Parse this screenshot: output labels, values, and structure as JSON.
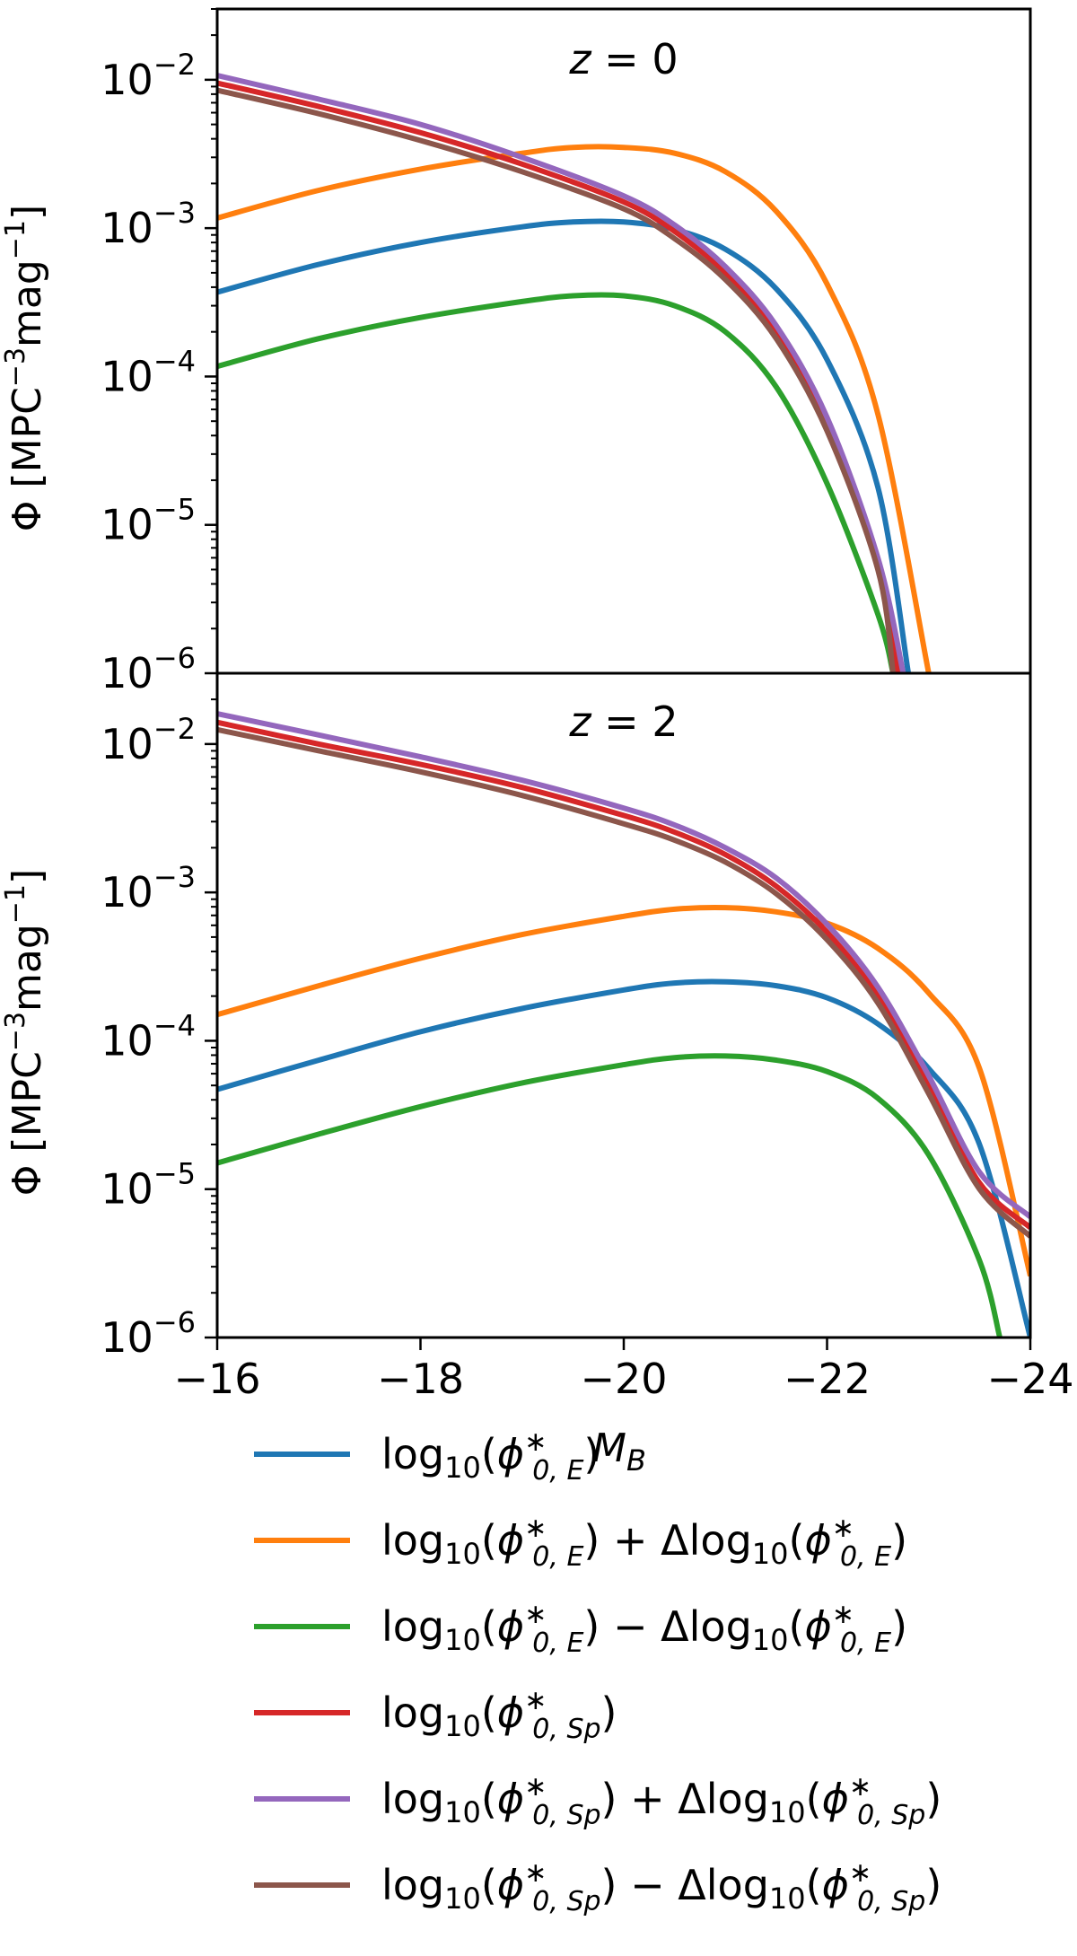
{
  "chart_data": [
    {
      "type": "line",
      "panel_label": "z = 0",
      "panel_label_parts": {
        "var": "z",
        "eq": " = ",
        "val": "0"
      },
      "ylabel": "Φ [MPC⁻³mag⁻¹]",
      "ylabel_parts": {
        "main": "Φ [MPC",
        "sup1": "−3",
        "mid": "mag",
        "sup2": "−1",
        "end": "]"
      },
      "y_scale": "log",
      "ylim": [
        1e-06,
        0.03
      ],
      "xlim": [
        -16,
        -24
      ],
      "x_ticks_shown": false,
      "y_ticks": [
        {
          "value": 1e-06,
          "base": "10",
          "exp": "−6"
        },
        {
          "value": 1e-05,
          "base": "10",
          "exp": "−5"
        },
        {
          "value": 0.0001,
          "base": "10",
          "exp": "−4"
        },
        {
          "value": 0.001,
          "base": "10",
          "exp": "−3"
        },
        {
          "value": 0.01,
          "base": "10",
          "exp": "−2"
        }
      ],
      "series": [
        {
          "key": "E",
          "color": "#1f77b4",
          "x": [
            -16,
            -17,
            -18,
            -19,
            -19.5,
            -20,
            -20.5,
            -21,
            -21.5,
            -22,
            -22.5,
            -22.8
          ],
          "y": [
            0.00037,
            0.00057,
            0.0008,
            0.00102,
            0.0011,
            0.0011,
            0.00098,
            0.00072,
            0.00039,
            0.00013,
            1.8e-05,
            1e-06
          ]
        },
        {
          "key": "E_plus",
          "color": "#ff7f0e",
          "x": [
            -16,
            -17,
            -18,
            -19,
            -19.5,
            -20,
            -20.5,
            -21,
            -21.5,
            -22,
            -22.5,
            -23.0
          ],
          "y": [
            0.00117,
            0.0018,
            0.0025,
            0.0032,
            0.0035,
            0.0035,
            0.0032,
            0.0024,
            0.0013,
            0.00042,
            5.6e-05,
            1e-06
          ]
        },
        {
          "key": "E_minus",
          "color": "#2ca02c",
          "x": [
            -16,
            -17,
            -18,
            -19,
            -19.5,
            -20,
            -20.5,
            -21,
            -21.5,
            -22,
            -22.5,
            -22.65
          ],
          "y": [
            0.000117,
            0.00018,
            0.00025,
            0.00032,
            0.00035,
            0.00035,
            0.0003,
            0.0002,
            8.5e-05,
            1.9e-05,
            2.5e-06,
            1e-06
          ]
        },
        {
          "key": "Sp",
          "color": "#d62728",
          "x": [
            -16,
            -17,
            -18,
            -19,
            -20,
            -20.5,
            -21,
            -21.5,
            -22,
            -22.5,
            -22.7
          ],
          "y": [
            0.0095,
            0.0066,
            0.0044,
            0.0027,
            0.0015,
            0.00095,
            0.0005,
            0.0002,
            4.8e-05,
            5.5e-06,
            1e-06
          ]
        },
        {
          "key": "Sp_plus",
          "color": "#9467bd",
          "x": [
            -16,
            -17,
            -18,
            -19,
            -20,
            -20.5,
            -21,
            -21.5,
            -22,
            -22.5,
            -22.75
          ],
          "y": [
            0.0107,
            0.0074,
            0.005,
            0.003,
            0.00165,
            0.00105,
            0.00055,
            0.00022,
            5.3e-05,
            6e-06,
            1e-06
          ]
        },
        {
          "key": "Sp_minus",
          "color": "#8c564b",
          "x": [
            -16,
            -17,
            -18,
            -19,
            -20,
            -20.5,
            -21,
            -21.5,
            -22,
            -22.5,
            -22.65
          ],
          "y": [
            0.0085,
            0.0059,
            0.0039,
            0.0024,
            0.00135,
            0.00085,
            0.00045,
            0.00018,
            4.3e-05,
            5e-06,
            1e-06
          ]
        }
      ]
    },
    {
      "type": "line",
      "panel_label": "z = 2",
      "panel_label_parts": {
        "var": "z",
        "eq": " = ",
        "val": "2"
      },
      "xlabel": "M_B",
      "xlabel_parts": {
        "main": "M",
        "sub": "B"
      },
      "ylabel": "Φ [MPC⁻³mag⁻¹]",
      "ylabel_parts": {
        "main": "Φ [MPC",
        "sup1": "−3",
        "mid": "mag",
        "sup2": "−1",
        "end": "]"
      },
      "y_scale": "log",
      "ylim": [
        1e-06,
        0.03
      ],
      "xlim": [
        -16,
        -24
      ],
      "x_ticks": [
        "−16",
        "−18",
        "−20",
        "−22",
        "−24"
      ],
      "x_tick_values": [
        -16,
        -18,
        -20,
        -22,
        -24
      ],
      "y_ticks": [
        {
          "value": 1e-06,
          "base": "10",
          "exp": "−6"
        },
        {
          "value": 1e-05,
          "base": "10",
          "exp": "−5"
        },
        {
          "value": 0.0001,
          "base": "10",
          "exp": "−4"
        },
        {
          "value": 0.001,
          "base": "10",
          "exp": "−3"
        },
        {
          "value": 0.01,
          "base": "10",
          "exp": "−2"
        }
      ],
      "series": [
        {
          "key": "E",
          "color": "#1f77b4",
          "x": [
            -16,
            -17,
            -18,
            -19,
            -20,
            -20.5,
            -21,
            -21.5,
            -22,
            -22.5,
            -23,
            -23.5,
            -24.0
          ],
          "y": [
            4.7e-05,
            7.4e-05,
            0.000115,
            0.000165,
            0.00022,
            0.000245,
            0.00025,
            0.000235,
            0.000195,
            0.00013,
            6.5e-05,
            2e-05,
            1e-06
          ]
        },
        {
          "key": "E_plus",
          "color": "#ff7f0e",
          "x": [
            -16,
            -17,
            -18,
            -19,
            -20,
            -20.5,
            -21,
            -21.5,
            -22,
            -22.5,
            -23,
            -23.5,
            -24.0
          ],
          "y": [
            0.00015,
            0.000235,
            0.00036,
            0.00052,
            0.00069,
            0.00077,
            0.00079,
            0.00074,
            0.00062,
            0.00042,
            0.00021,
            6.5e-05,
            2.6e-06
          ]
        },
        {
          "key": "E_minus",
          "color": "#2ca02c",
          "x": [
            -16,
            -17,
            -18,
            -19,
            -20,
            -20.5,
            -21,
            -21.5,
            -22,
            -22.5,
            -23,
            -23.5,
            -23.7
          ],
          "y": [
            1.5e-05,
            2.35e-05,
            3.6e-05,
            5.2e-05,
            6.9e-05,
            7.7e-05,
            7.9e-05,
            7.4e-05,
            6.2e-05,
            4.1e-05,
            1.7e-05,
            3.3e-06,
            1e-06
          ]
        },
        {
          "key": "Sp",
          "color": "#d62728",
          "x": [
            -16,
            -17,
            -18,
            -19,
            -20,
            -20.5,
            -21,
            -21.5,
            -22,
            -22.5,
            -23,
            -23.5,
            -24
          ],
          "y": [
            0.014,
            0.01,
            0.0073,
            0.0051,
            0.0033,
            0.00255,
            0.0018,
            0.0011,
            0.00054,
            0.0002,
            5e-05,
            1.1e-05,
            5.5e-06
          ]
        },
        {
          "key": "Sp_plus",
          "color": "#9467bd",
          "x": [
            -16,
            -17,
            -18,
            -19,
            -20,
            -20.5,
            -21,
            -21.5,
            -22,
            -22.5,
            -23,
            -23.5,
            -24
          ],
          "y": [
            0.016,
            0.0115,
            0.0082,
            0.0057,
            0.0037,
            0.00285,
            0.002,
            0.00125,
            0.00061,
            0.00023,
            5.8e-05,
            1.3e-05,
            6.5e-06
          ]
        },
        {
          "key": "Sp_minus",
          "color": "#8c564b",
          "x": [
            -16,
            -17,
            -18,
            -19,
            -20,
            -20.5,
            -21,
            -21.5,
            -22,
            -22.5,
            -23,
            -23.5,
            -24
          ],
          "y": [
            0.0125,
            0.009,
            0.0065,
            0.0045,
            0.0029,
            0.00225,
            0.0016,
            0.00098,
            0.00048,
            0.00018,
            4.4e-05,
            1e-05,
            4.8e-06
          ]
        }
      ]
    }
  ],
  "legend": {
    "placement": "below",
    "entries": [
      {
        "key": "E",
        "color": "#1f77b4",
        "pre": "log",
        "sub": "10",
        "open": "(",
        "phi": "ϕ",
        "sup": "∗",
        "phisub": "0, E",
        "close": ")",
        "op": "",
        "delta": "",
        "dsub": "",
        "dphisub": ""
      },
      {
        "key": "E_plus",
        "color": "#ff7f0e",
        "pre": "log",
        "sub": "10",
        "open": "(",
        "phi": "ϕ",
        "sup": "∗",
        "phisub": "0, E",
        "close": ")",
        "op": " + ",
        "delta": "Δlog",
        "dsub": "10",
        "dphisub": "0, E"
      },
      {
        "key": "E_minus",
        "color": "#2ca02c",
        "pre": "log",
        "sub": "10",
        "open": "(",
        "phi": "ϕ",
        "sup": "∗",
        "phisub": "0, E",
        "close": ")",
        "op": " − ",
        "delta": "Δlog",
        "dsub": "10",
        "dphisub": "0, E"
      },
      {
        "key": "Sp",
        "color": "#d62728",
        "pre": "log",
        "sub": "10",
        "open": "(",
        "phi": "ϕ",
        "sup": "∗",
        "phisub": "0, Sp",
        "close": ")",
        "op": "",
        "delta": "",
        "dsub": "",
        "dphisub": ""
      },
      {
        "key": "Sp_plus",
        "color": "#9467bd",
        "pre": "log",
        "sub": "10",
        "open": "(",
        "phi": "ϕ",
        "sup": "∗",
        "phisub": "0, Sp",
        "close": ")",
        "op": " + ",
        "delta": "Δlog",
        "dsub": "10",
        "dphisub": "0, Sp"
      },
      {
        "key": "Sp_minus",
        "color": "#8c564b",
        "pre": "log",
        "sub": "10",
        "open": "(",
        "phi": "ϕ",
        "sup": "∗",
        "phisub": "0, Sp",
        "close": ")",
        "op": " − ",
        "delta": "Δlog",
        "dsub": "10",
        "dphisub": "0, Sp"
      }
    ]
  }
}
